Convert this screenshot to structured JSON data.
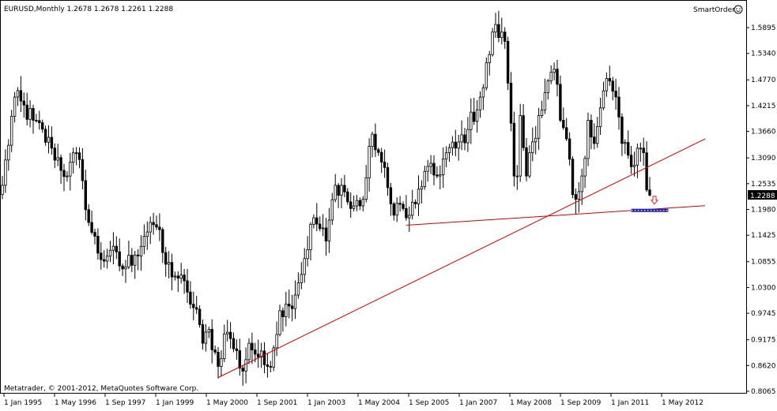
{
  "window": {
    "symbol_info": "EURUSD,Monthly  1.2678 1.2678 1.2261 1.2288",
    "smartorder_label": "SmartOrder",
    "copyright": "Metatrader, © 2001-2012, MetaQuotes Software Corp.",
    "current_price": "1.2288"
  },
  "colors": {
    "background": "#ffffff",
    "candle": "#000000",
    "trendline": "#cc0000",
    "price_badge_bg": "#000000",
    "price_badge_text": "#ffffff",
    "zone_blue": "#1a1aa8",
    "arrow": "#dd2222"
  },
  "icons": {
    "smartorder": "smiley-icon",
    "sell_arrow": "down-arrow-icon"
  },
  "chart_data": {
    "type": "candlestick",
    "title": "EURUSD,Monthly",
    "ohlc_header": {
      "open": 1.2678,
      "high": 1.2678,
      "low": 1.2261,
      "close": 1.2288
    },
    "x_labels": [
      "1 Jan 1995",
      "1 May 1996",
      "1 Sep 1997",
      "1 Jan 1999",
      "1 May 2000",
      "1 Sep 2001",
      "1 Jan 2003",
      "1 May 2004",
      "1 Sep 2005",
      "1 Jan 2007",
      "1 May 2008",
      "1 Sep 2009",
      "1 Jan 2011",
      "1 May 2012"
    ],
    "y_labels": [
      "1.5895",
      "1.5340",
      "1.4770",
      "1.4215",
      "1.3660",
      "1.3090",
      "1.2535",
      "1.1980",
      "1.1425",
      "1.0855",
      "1.0300",
      "0.9745",
      "0.9175",
      "0.8620",
      "0.8065"
    ],
    "ylim": [
      0.8065,
      1.5895
    ],
    "start": "1994-12",
    "anchors": [
      [
        "1994-12",
        1.25
      ],
      [
        "1995-04",
        1.44
      ],
      [
        "1995-10",
        1.39
      ],
      [
        "1996-04",
        1.33
      ],
      [
        "1996-09",
        1.27
      ],
      [
        "1996-12",
        1.32
      ],
      [
        "1997-02",
        1.26
      ],
      [
        "1997-04",
        1.17
      ],
      [
        "1997-08",
        1.09
      ],
      [
        "1997-11",
        1.11
      ],
      [
        "1998-03",
        1.07
      ],
      [
        "1998-07",
        1.1
      ],
      [
        "1998-10",
        1.14
      ],
      [
        "1998-12",
        1.17
      ],
      [
        "1999-02",
        1.16
      ],
      [
        "1999-05",
        1.08
      ],
      [
        "1999-09",
        1.05
      ],
      [
        "1999-12",
        1.02
      ],
      [
        "2000-04",
        0.95
      ],
      [
        "2000-05",
        0.91
      ],
      [
        "2000-07",
        0.94
      ],
      [
        "2000-10",
        0.86
      ],
      [
        "2000-12",
        0.93
      ],
      [
        "2001-02",
        0.92
      ],
      [
        "2001-06",
        0.85
      ],
      [
        "2001-08",
        0.91
      ],
      [
        "2001-11",
        0.88
      ],
      [
        "2002-02",
        0.86
      ],
      [
        "2002-04",
        0.9
      ],
      [
        "2002-06",
        0.98
      ],
      [
        "2002-09",
        0.99
      ],
      [
        "2002-12",
        1.04
      ],
      [
        "2003-05",
        1.18
      ],
      [
        "2003-09",
        1.13
      ],
      [
        "2003-12",
        1.25
      ],
      [
        "2004-02",
        1.25
      ],
      [
        "2004-05",
        1.2
      ],
      [
        "2004-09",
        1.22
      ],
      [
        "2004-12",
        1.36
      ],
      [
        "2005-03",
        1.3
      ],
      [
        "2005-06",
        1.21
      ],
      [
        "2005-10",
        1.2
      ],
      [
        "2005-11",
        1.18
      ],
      [
        "2006-02",
        1.21
      ],
      [
        "2006-05",
        1.28
      ],
      [
        "2006-09",
        1.27
      ],
      [
        "2006-12",
        1.32
      ],
      [
        "2007-03",
        1.33
      ],
      [
        "2007-07",
        1.37
      ],
      [
        "2007-12",
        1.46
      ],
      [
        "2008-03",
        1.58
      ],
      [
        "2008-06",
        1.58
      ],
      [
        "2008-07",
        1.56
      ],
      [
        "2008-08",
        1.47
      ],
      [
        "2008-10",
        1.27
      ],
      [
        "2008-11",
        1.27
      ],
      [
        "2008-12",
        1.4
      ],
      [
        "2009-02",
        1.27
      ],
      [
        "2009-03",
        1.32
      ],
      [
        "2009-06",
        1.4
      ],
      [
        "2009-11",
        1.5
      ],
      [
        "2010-01",
        1.39
      ],
      [
        "2010-03",
        1.35
      ],
      [
        "2010-05",
        1.23
      ],
      [
        "2010-06",
        1.22
      ],
      [
        "2010-08",
        1.27
      ],
      [
        "2010-10",
        1.39
      ],
      [
        "2010-12",
        1.34
      ],
      [
        "2011-04",
        1.48
      ],
      [
        "2011-07",
        1.44
      ],
      [
        "2011-09",
        1.34
      ],
      [
        "2011-12",
        1.29
      ],
      [
        "2012-02",
        1.33
      ],
      [
        "2012-03",
        1.33
      ],
      [
        "2012-04",
        1.32
      ],
      [
        "2012-05",
        1.24
      ],
      [
        "2012-06",
        1.2288
      ]
    ],
    "trendlines": [
      {
        "from": [
          "2000-10",
          0.836
        ],
        "to": [
          "2013-12",
          1.35
        ]
      },
      {
        "from": [
          "2005-11",
          1.164
        ],
        "to": [
          "2013-12",
          1.206
        ]
      }
    ],
    "zone": {
      "from": "2011-12",
      "to": "2012-12",
      "value": 1.196
    },
    "arrow": {
      "at": "2012-06",
      "value": 1.218,
      "direction": "down"
    },
    "grid": false
  }
}
